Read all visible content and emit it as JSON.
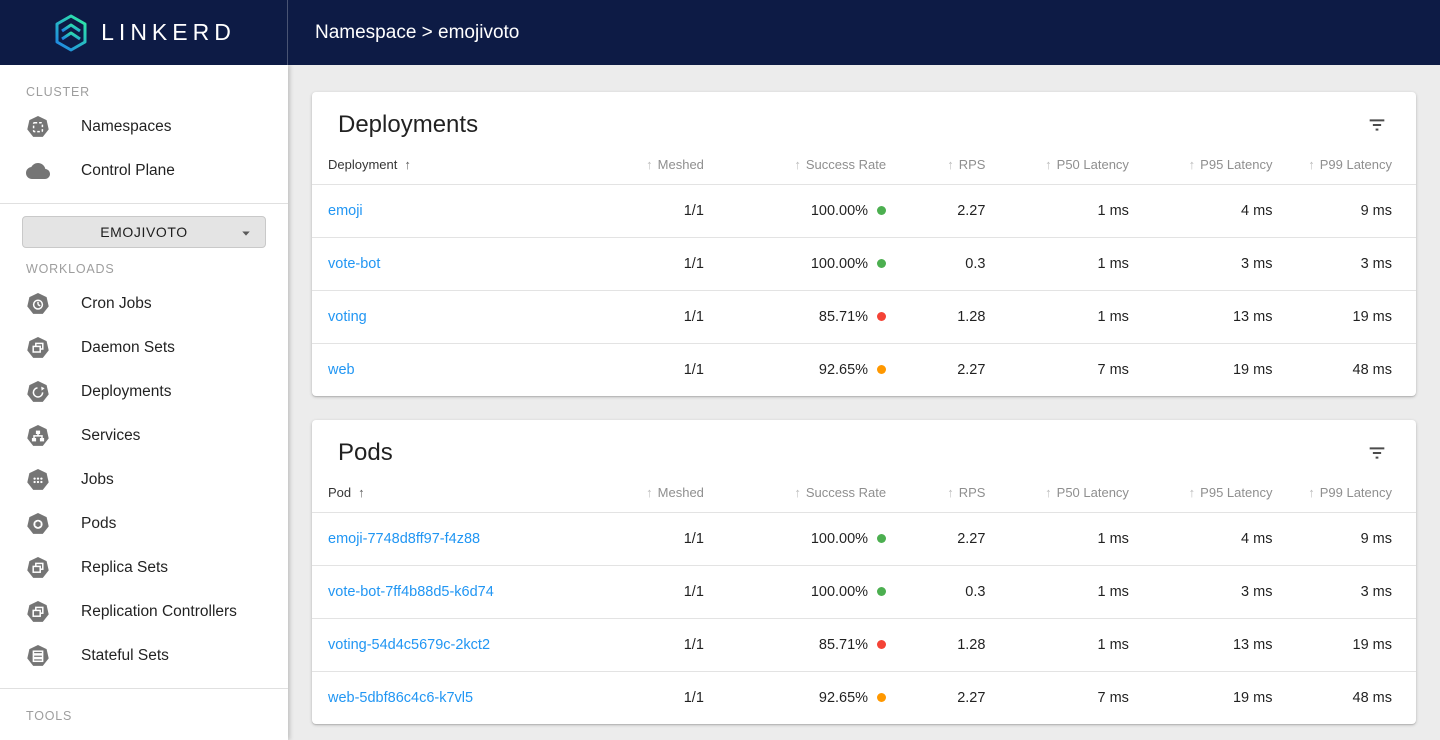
{
  "app": {
    "logo_text": "LINKERD",
    "breadcrumb": "Namespace > emojivoto"
  },
  "colors": {
    "appbar": "#0d1b45",
    "logo_teal": "#2ee6a8",
    "logo_blue": "#1e7fe8",
    "link": "#2196f3",
    "status_good": "#4caf50",
    "status_warn": "#ff9800",
    "status_bad": "#f44336"
  },
  "sidebar": {
    "selector": {
      "label": "EMOJIVOTO",
      "icon": "dropdown-caret-icon"
    },
    "sections": [
      {
        "label": "CLUSTER",
        "items": [
          {
            "label": "Namespaces",
            "icon": "namespaces-icon"
          },
          {
            "label": "Control Plane",
            "icon": "control-plane-icon"
          }
        ]
      },
      {
        "label": "WORKLOADS",
        "items": [
          {
            "label": "Cron Jobs",
            "icon": "cron-jobs-icon"
          },
          {
            "label": "Daemon Sets",
            "icon": "daemon-sets-icon"
          },
          {
            "label": "Deployments",
            "icon": "deployments-icon"
          },
          {
            "label": "Services",
            "icon": "services-icon"
          },
          {
            "label": "Jobs",
            "icon": "jobs-icon"
          },
          {
            "label": "Pods",
            "icon": "pods-icon"
          },
          {
            "label": "Replica Sets",
            "icon": "replica-sets-icon"
          },
          {
            "label": "Replication Controllers",
            "icon": "replication-controllers-icon"
          },
          {
            "label": "Stateful Sets",
            "icon": "stateful-sets-icon"
          }
        ]
      },
      {
        "label": "TOOLS",
        "items": []
      }
    ]
  },
  "deployments_card": {
    "title": "Deployments",
    "entity_column": "Deployment",
    "columns": [
      "Meshed",
      "Success Rate",
      "RPS",
      "P50 Latency",
      "P95 Latency",
      "P99 Latency"
    ],
    "filter_icon": "filter-list-icon",
    "rows": [
      {
        "name": "emoji",
        "meshed": "1/1",
        "success_rate": "100.00%",
        "status": "good",
        "rps": "2.27",
        "p50": "1 ms",
        "p95": "4 ms",
        "p99": "9 ms"
      },
      {
        "name": "vote-bot",
        "meshed": "1/1",
        "success_rate": "100.00%",
        "status": "good",
        "rps": "0.3",
        "p50": "1 ms",
        "p95": "3 ms",
        "p99": "3 ms"
      },
      {
        "name": "voting",
        "meshed": "1/1",
        "success_rate": "85.71%",
        "status": "bad",
        "rps": "1.28",
        "p50": "1 ms",
        "p95": "13 ms",
        "p99": "19 ms"
      },
      {
        "name": "web",
        "meshed": "1/1",
        "success_rate": "92.65%",
        "status": "warn",
        "rps": "2.27",
        "p50": "7 ms",
        "p95": "19 ms",
        "p99": "48 ms"
      }
    ]
  },
  "pods_card": {
    "title": "Pods",
    "entity_column": "Pod",
    "columns": [
      "Meshed",
      "Success Rate",
      "RPS",
      "P50 Latency",
      "P95 Latency",
      "P99 Latency"
    ],
    "filter_icon": "filter-list-icon",
    "rows": [
      {
        "name": "emoji-7748d8ff97-f4z88",
        "meshed": "1/1",
        "success_rate": "100.00%",
        "status": "good",
        "rps": "2.27",
        "p50": "1 ms",
        "p95": "4 ms",
        "p99": "9 ms"
      },
      {
        "name": "vote-bot-7ff4b88d5-k6d74",
        "meshed": "1/1",
        "success_rate": "100.00%",
        "status": "good",
        "rps": "0.3",
        "p50": "1 ms",
        "p95": "3 ms",
        "p99": "3 ms"
      },
      {
        "name": "voting-54d4c5679c-2kct2",
        "meshed": "1/1",
        "success_rate": "85.71%",
        "status": "bad",
        "rps": "1.28",
        "p50": "1 ms",
        "p95": "13 ms",
        "p99": "19 ms"
      },
      {
        "name": "web-5dbf86c4c6-k7vl5",
        "meshed": "1/1",
        "success_rate": "92.65%",
        "status": "warn",
        "rps": "2.27",
        "p50": "7 ms",
        "p95": "19 ms",
        "p99": "48 ms"
      }
    ]
  }
}
